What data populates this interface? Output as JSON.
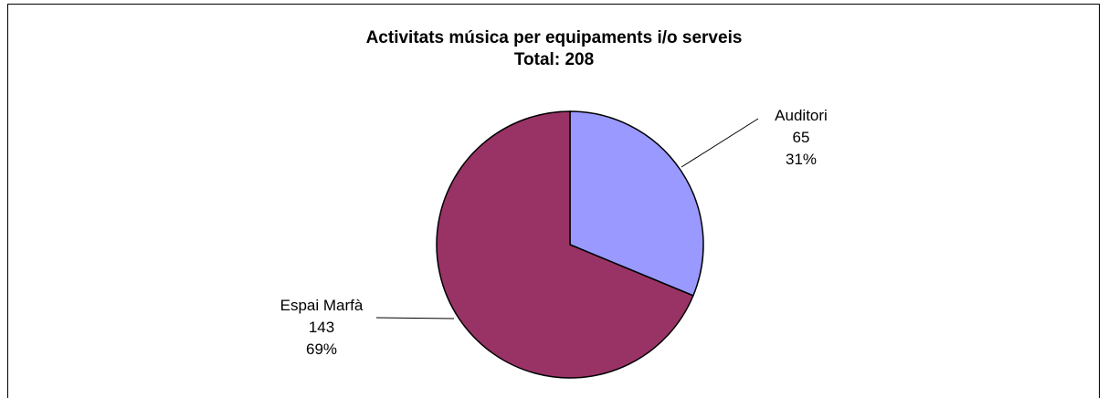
{
  "chart_data": {
    "type": "pie",
    "title": "Activitats música per equipaments i/o serveis",
    "subtitle": "Total: 208",
    "categories": [
      "Auditori",
      "Espai Marfà"
    ],
    "values": [
      65,
      143
    ],
    "percent_labels": [
      "31%",
      "69%"
    ],
    "value_labels": [
      "65",
      "143"
    ],
    "colors": [
      "#9999FF",
      "#993366"
    ],
    "legend": "none",
    "data_labels": "outside with leader lines"
  }
}
